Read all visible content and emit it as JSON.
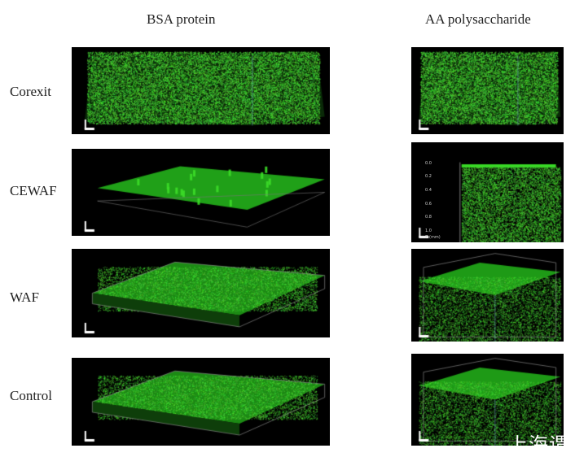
{
  "columns": [
    "BSA protein",
    "AA polysaccharide"
  ],
  "rows": [
    "Corexit",
    "CEWAF",
    "WAF",
    "Control"
  ],
  "cewaf_aa_axis": {
    "ticks": [
      "0.0",
      "0.2",
      "0.4",
      "0.6",
      "0.8",
      "1.0"
    ],
    "label": "Z (mm)"
  },
  "watermark": "上海谓",
  "colors": {
    "fluorescence": "#3cdc2a",
    "background": "#000000",
    "box_edge": "#6fa0c0"
  }
}
